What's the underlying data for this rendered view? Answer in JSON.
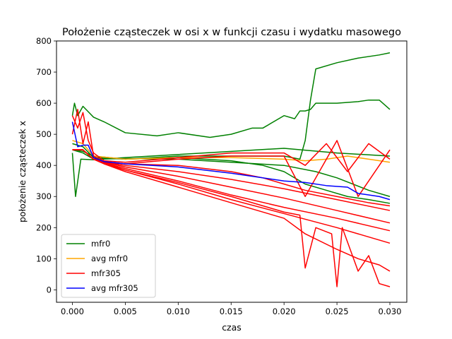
{
  "chart_data": {
    "type": "line",
    "title": "Położenie cząsteczek w osi x w funkcji czasu i wydatku masowego",
    "xlabel": "czas",
    "ylabel": "położenie cząsteczek x",
    "xlim": [
      -0.0015,
      0.0316
    ],
    "ylim": [
      -40,
      800
    ],
    "x_ticks": [
      0.0,
      0.005,
      0.01,
      0.015,
      0.02,
      0.025,
      0.03
    ],
    "x_tick_labels": [
      "0.000",
      "0.005",
      "0.010",
      "0.015",
      "0.020",
      "0.025",
      "0.030"
    ],
    "y_ticks": [
      0,
      100,
      200,
      300,
      400,
      500,
      600,
      700,
      800
    ],
    "y_tick_labels": [
      "0",
      "100",
      "200",
      "300",
      "400",
      "500",
      "600",
      "700",
      "800"
    ],
    "grid": false,
    "legend_position": "lower-left",
    "legend": [
      {
        "label": "mfr0",
        "color": "#008000"
      },
      {
        "label": "avg mfr0",
        "color": "#ffa500"
      },
      {
        "label": "mfr305",
        "color": "#ff0000"
      },
      {
        "label": "avg mfr305",
        "color": "#0000ff"
      }
    ],
    "series": [
      {
        "group": "mfr0",
        "color": "#008000",
        "x": [
          0.0,
          0.0002,
          0.0005,
          0.001,
          0.002,
          0.003,
          0.005,
          0.008,
          0.01,
          0.013,
          0.015,
          0.017,
          0.018,
          0.02,
          0.021,
          0.0215,
          0.022,
          0.0225,
          0.023,
          0.025,
          0.027,
          0.028,
          0.029,
          0.03
        ],
        "y": [
          560,
          600,
          560,
          590,
          555,
          540,
          505,
          495,
          505,
          490,
          500,
          520,
          520,
          560,
          550,
          575,
          575,
          580,
          600,
          600,
          605,
          610,
          610,
          580
        ]
      },
      {
        "group": "mfr0",
        "color": "#008000",
        "x": [
          0.0,
          0.001,
          0.002,
          0.005,
          0.01,
          0.015,
          0.02,
          0.0215,
          0.022,
          0.0225,
          0.023,
          0.025,
          0.027,
          0.029,
          0.03
        ],
        "y": [
          450,
          445,
          430,
          420,
          430,
          430,
          430,
          420,
          480,
          610,
          710,
          730,
          745,
          755,
          762
        ]
      },
      {
        "group": "mfr0",
        "color": "#008000",
        "x": [
          0.0,
          0.0003,
          0.0008,
          0.002,
          0.005,
          0.01,
          0.015,
          0.02,
          0.025,
          0.03
        ],
        "y": [
          440,
          300,
          420,
          418,
          425,
          435,
          445,
          455,
          440,
          430
        ]
      },
      {
        "group": "mfr0",
        "color": "#008000",
        "x": [
          0.0,
          0.001,
          0.002,
          0.005,
          0.01,
          0.015,
          0.018,
          0.02,
          0.022,
          0.024,
          0.026,
          0.028,
          0.03
        ],
        "y": [
          470,
          460,
          425,
          420,
          425,
          415,
          400,
          380,
          340,
          320,
          300,
          290,
          278
        ]
      },
      {
        "group": "mfr0",
        "color": "#008000",
        "x": [
          0.0,
          0.001,
          0.002,
          0.005,
          0.01,
          0.015,
          0.02,
          0.023,
          0.025,
          0.028,
          0.03
        ],
        "y": [
          450,
          440,
          420,
          422,
          420,
          410,
          400,
          380,
          360,
          320,
          300
        ]
      },
      {
        "group": "avg mfr0",
        "color": "#ffa500",
        "x": [
          0.0,
          0.001,
          0.002,
          0.005,
          0.01,
          0.015,
          0.02,
          0.022,
          0.024,
          0.026,
          0.028,
          0.03
        ],
        "y": [
          480,
          470,
          430,
          420,
          425,
          425,
          420,
          415,
          420,
          430,
          420,
          410
        ]
      },
      {
        "group": "mfr305",
        "color": "#ff0000",
        "x": [
          0.0,
          0.0005,
          0.001,
          0.0015,
          0.002,
          0.003,
          0.005,
          0.01,
          0.015,
          0.02,
          0.022,
          0.024,
          0.026,
          0.028,
          0.03
        ],
        "y": [
          560,
          520,
          570,
          480,
          440,
          415,
          410,
          425,
          440,
          440,
          400,
          470,
          380,
          470,
          420
        ]
      },
      {
        "group": "mfr305",
        "color": "#ff0000",
        "x": [
          0.0,
          0.0005,
          0.001,
          0.0015,
          0.002,
          0.003,
          0.005,
          0.01,
          0.015,
          0.02,
          0.022,
          0.025,
          0.027,
          0.03
        ],
        "y": [
          500,
          580,
          470,
          540,
          430,
          412,
          405,
          420,
          430,
          430,
          300,
          480,
          300,
          450
        ]
      },
      {
        "group": "mfr305",
        "color": "#ff0000",
        "x": [
          0.0,
          0.001,
          0.002,
          0.003,
          0.005,
          0.01,
          0.015,
          0.018,
          0.02,
          0.022,
          0.025,
          0.028,
          0.03
        ],
        "y": [
          450,
          450,
          420,
          410,
          405,
          400,
          380,
          360,
          340,
          320,
          300,
          280,
          270
        ]
      },
      {
        "group": "mfr305",
        "color": "#ff0000",
        "x": [
          0.0,
          0.001,
          0.002,
          0.003,
          0.005,
          0.01,
          0.015,
          0.02,
          0.025,
          0.03
        ],
        "y": [
          450,
          450,
          420,
          410,
          400,
          380,
          355,
          325,
          290,
          255
        ]
      },
      {
        "group": "mfr305",
        "color": "#ff0000",
        "x": [
          0.0,
          0.001,
          0.002,
          0.003,
          0.005,
          0.01,
          0.015,
          0.02,
          0.025,
          0.03
        ],
        "y": [
          450,
          450,
          420,
          410,
          395,
          365,
          330,
          295,
          255,
          215
        ]
      },
      {
        "group": "mfr305",
        "color": "#ff0000",
        "x": [
          0.0,
          0.001,
          0.002,
          0.003,
          0.005,
          0.01,
          0.015,
          0.02,
          0.025,
          0.03
        ],
        "y": [
          450,
          450,
          420,
          408,
          390,
          350,
          305,
          265,
          230,
          190
        ]
      },
      {
        "group": "mfr305",
        "color": "#ff0000",
        "x": [
          0.0,
          0.001,
          0.002,
          0.003,
          0.005,
          0.01,
          0.015,
          0.02,
          0.025,
          0.03
        ],
        "y": [
          450,
          450,
          420,
          408,
          385,
          340,
          290,
          245,
          200,
          150
        ]
      },
      {
        "group": "mfr305",
        "color": "#ff0000",
        "x": [
          0.0,
          0.001,
          0.002,
          0.003,
          0.005,
          0.01,
          0.015,
          0.02,
          0.022,
          0.025,
          0.027,
          0.029,
          0.03
        ],
        "y": [
          450,
          450,
          420,
          405,
          380,
          330,
          280,
          230,
          180,
          130,
          100,
          80,
          60
        ]
      },
      {
        "group": "mfr305",
        "color": "#ff0000",
        "x": [
          0.0,
          0.001,
          0.002,
          0.003,
          0.005,
          0.01,
          0.015,
          0.02,
          0.0215,
          0.022,
          0.023,
          0.0245,
          0.025,
          0.0255,
          0.027,
          0.028,
          0.029,
          0.03
        ],
        "y": [
          450,
          450,
          420,
          405,
          385,
          345,
          300,
          250,
          240,
          70,
          200,
          180,
          10,
          200,
          60,
          110,
          20,
          10
        ]
      },
      {
        "group": "avg mfr305",
        "color": "#0000ff",
        "x": [
          0.0,
          0.0005,
          0.001,
          0.0015,
          0.002,
          0.003,
          0.005,
          0.01,
          0.015,
          0.02,
          0.022,
          0.024,
          0.026,
          0.027,
          0.028,
          0.029,
          0.03
        ],
        "y": [
          540,
          460,
          465,
          465,
          425,
          412,
          405,
          395,
          375,
          350,
          345,
          335,
          330,
          310,
          305,
          300,
          290
        ]
      }
    ]
  }
}
